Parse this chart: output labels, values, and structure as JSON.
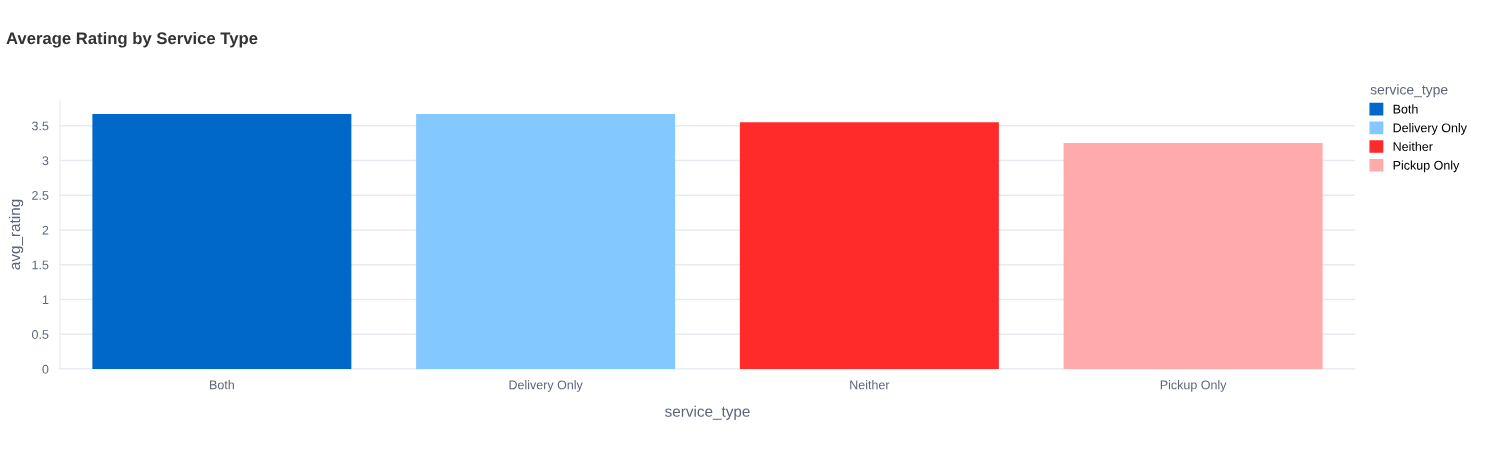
{
  "chart_data": {
    "type": "bar",
    "title": "Average Rating by Service Type",
    "xlabel": "service_type",
    "ylabel": "avg_rating",
    "legend_title": "service_type",
    "categories": [
      "Both",
      "Delivery Only",
      "Neither",
      "Pickup Only"
    ],
    "series": [
      {
        "name": "Both",
        "color": "#0068c9",
        "values": [
          3.67,
          null,
          null,
          null
        ]
      },
      {
        "name": "Delivery Only",
        "color": "#83c9ff",
        "values": [
          null,
          3.67,
          null,
          null
        ]
      },
      {
        "name": "Neither",
        "color": "#ff2b2b",
        "values": [
          null,
          null,
          3.55,
          null
        ]
      },
      {
        "name": "Pickup Only",
        "color": "#ffabab",
        "values": [
          null,
          null,
          null,
          3.25
        ]
      }
    ],
    "ylim": [
      0,
      3.87
    ],
    "yticks": [
      0,
      {
        "value": 0.5,
        "label": "0.5"
      },
      1,
      {
        "value": 1.5,
        "label": "1.5"
      },
      2,
      {
        "value": 2.5,
        "label": "2.5"
      },
      3,
      {
        "value": 3.5,
        "label": "3.5"
      }
    ],
    "grid": "y",
    "legend": "top right"
  }
}
